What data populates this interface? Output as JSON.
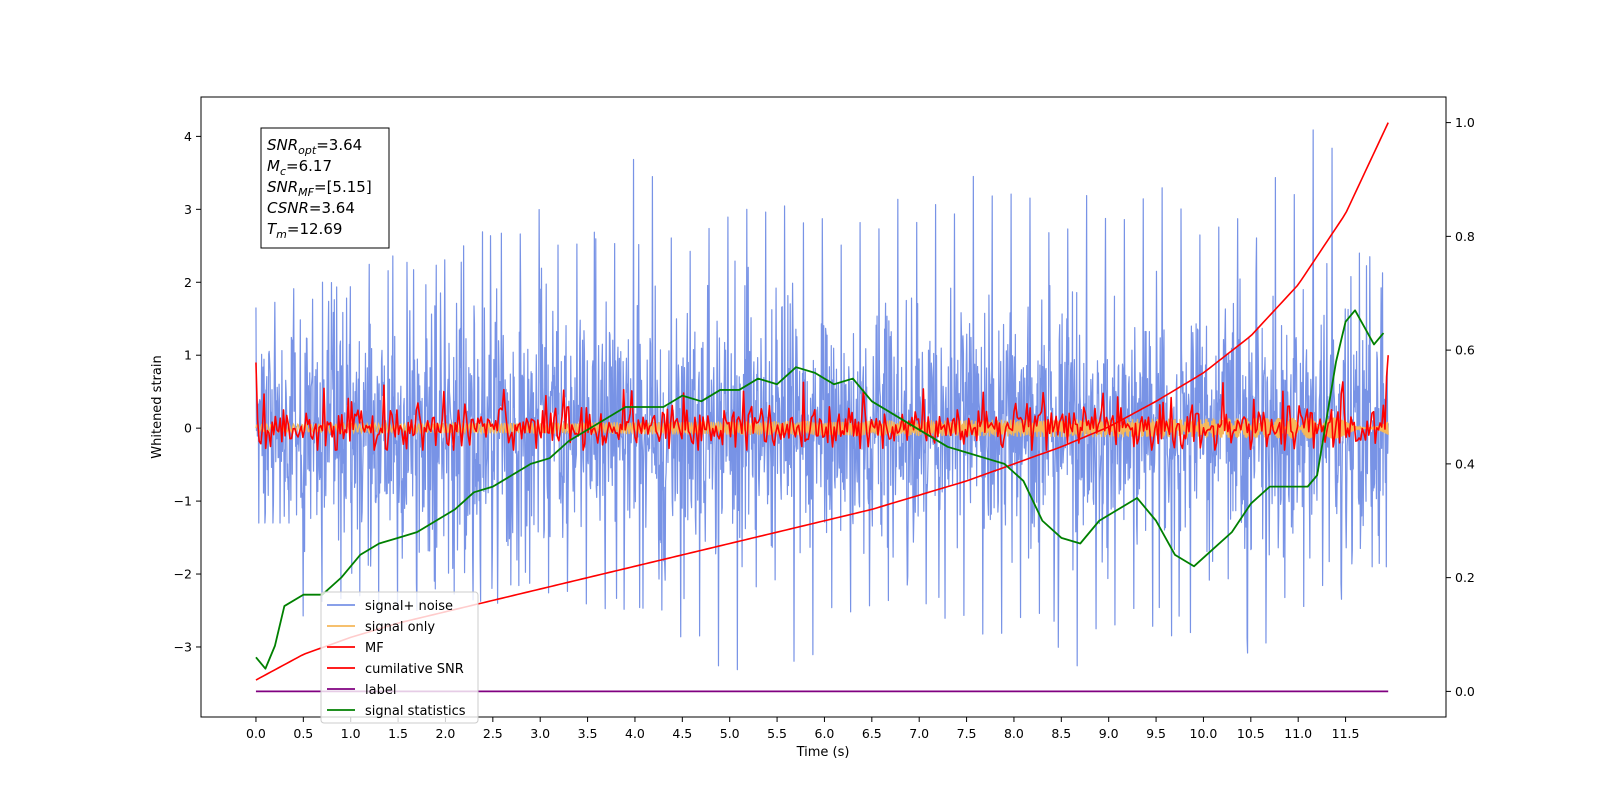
{
  "chart_data": {
    "type": "line",
    "xlabel": "Time (s)",
    "ylabel": "Whitened strain",
    "xlim": [
      -0.58,
      12.56
    ],
    "ylim": [
      -3.96,
      4.54
    ],
    "y2lim": [
      -0.045,
      1.045
    ],
    "xticks": [
      0.0,
      0.5,
      1.0,
      1.5,
      2.0,
      2.5,
      3.0,
      3.5,
      4.0,
      4.5,
      5.0,
      5.5,
      6.0,
      6.5,
      7.0,
      7.5,
      8.0,
      8.5,
      9.0,
      9.5,
      10.0,
      10.5,
      11.0,
      11.5
    ],
    "xtick_labels": [
      "0.0",
      "0.5",
      "1.0",
      "1.5",
      "2.0",
      "2.5",
      "3.0",
      "3.5",
      "4.0",
      "4.5",
      "5.0",
      "5.5",
      "6.0",
      "6.5",
      "7.0",
      "7.5",
      "8.0",
      "8.5",
      "9.0",
      "9.5",
      "10.0",
      "10.5",
      "11.0",
      "11.5"
    ],
    "yticks": [
      -3,
      -2,
      -1,
      0,
      1,
      2,
      3,
      4
    ],
    "ytick_labels": [
      "−3",
      "−2",
      "−1",
      "0",
      "1",
      "2",
      "3",
      "4"
    ],
    "y2ticks": [
      0.0,
      0.2,
      0.4,
      0.6,
      0.8,
      1.0
    ],
    "y2tick_labels": [
      "0.0",
      "0.2",
      "0.4",
      "0.6",
      "0.8",
      "1.0"
    ],
    "grid": false,
    "legend_position": "lower-left",
    "annotation": {
      "lines": [
        {
          "sym": "SNR",
          "sub": "opt",
          "val": "=3.64"
        },
        {
          "sym": "M",
          "sub": "c",
          "val": "=6.17"
        },
        {
          "sym": "SNR",
          "sub": "MF",
          "val": "=[5.15]"
        },
        {
          "sym": "CSNR",
          "sub": "",
          "val": "=3.64"
        },
        {
          "sym": "T",
          "sub": "m",
          "val": "=12.69"
        }
      ]
    },
    "series": [
      {
        "name": "signal+ noise",
        "color": "#7893e6",
        "axis": "left",
        "envelope_max": [
          1.75,
          2.0,
          2.1,
          2.4,
          2.3,
          2.6,
          2.9,
          3.1,
          2.8,
          2.7,
          3.76,
          2.8,
          3.0,
          3.4,
          3.2,
          2.9,
          3.2,
          3.3,
          3.4,
          3.5,
          3.65,
          3.0,
          3.2,
          3.2,
          3.3,
          3.1,
          3.0,
          3.5,
          4.17,
          2.4
        ],
        "envelope_min": [
          -1.3,
          -2.6,
          -2.7,
          -2.6,
          -2.5,
          -2.6,
          -2.4,
          -2.5,
          -2.6,
          -2.7,
          -2.6,
          -3.1,
          -3.5,
          -2.4,
          -3.2,
          -2.8,
          -2.7,
          -2.5,
          -2.9,
          -3.0,
          -2.9,
          -3.4,
          -2.9,
          -2.8,
          -3.0,
          -2.4,
          -3.2,
          -2.6,
          -2.5,
          -1.9
        ]
      },
      {
        "name": "signal only",
        "color": "#f5b75a",
        "axis": "left",
        "amplitude_start": 0.05,
        "amplitude_end": 0.15
      },
      {
        "name": "MF",
        "color": "#ff0000",
        "axis": "left",
        "start_value": 0.9,
        "end_value": 1.0,
        "noise_range": [
          -0.3,
          0.6
        ]
      },
      {
        "name": "cumilative SNR",
        "color": "#ff0000",
        "axis": "right",
        "x": [
          0.0,
          0.5,
          1.0,
          1.5,
          2.0,
          2.5,
          3.0,
          3.5,
          4.0,
          4.5,
          5.0,
          5.5,
          6.0,
          6.5,
          7.0,
          7.5,
          8.0,
          8.5,
          9.0,
          9.5,
          10.0,
          10.5,
          11.0,
          11.5,
          11.95
        ],
        "values": [
          0.02,
          0.065,
          0.095,
          0.12,
          0.14,
          0.16,
          0.18,
          0.2,
          0.22,
          0.24,
          0.26,
          0.28,
          0.3,
          0.32,
          0.345,
          0.37,
          0.4,
          0.43,
          0.465,
          0.51,
          0.56,
          0.625,
          0.715,
          0.84,
          1.0
        ]
      },
      {
        "name": "label",
        "color": "#800080",
        "axis": "right",
        "x": [
          0.0,
          11.95
        ],
        "values": [
          0.0,
          0.0
        ]
      },
      {
        "name": "signal statistics",
        "color": "#008000",
        "axis": "right",
        "x": [
          0.0,
          0.1,
          0.2,
          0.3,
          0.5,
          0.7,
          0.9,
          1.1,
          1.3,
          1.5,
          1.7,
          1.9,
          2.1,
          2.3,
          2.5,
          2.7,
          2.9,
          3.1,
          3.3,
          3.5,
          3.7,
          3.9,
          4.1,
          4.3,
          4.5,
          4.7,
          4.9,
          5.1,
          5.3,
          5.5,
          5.7,
          5.9,
          6.1,
          6.3,
          6.5,
          6.7,
          6.9,
          7.1,
          7.3,
          7.5,
          7.7,
          7.9,
          8.1,
          8.3,
          8.5,
          8.7,
          8.9,
          9.1,
          9.3,
          9.5,
          9.7,
          9.9,
          10.1,
          10.3,
          10.5,
          10.7,
          10.9,
          11.1,
          11.2,
          11.3,
          11.4,
          11.5,
          11.6,
          11.7,
          11.8,
          11.9
        ],
        "values": [
          0.06,
          0.04,
          0.08,
          0.15,
          0.17,
          0.17,
          0.2,
          0.24,
          0.26,
          0.27,
          0.28,
          0.3,
          0.32,
          0.35,
          0.36,
          0.38,
          0.4,
          0.41,
          0.44,
          0.46,
          0.48,
          0.5,
          0.5,
          0.5,
          0.52,
          0.51,
          0.53,
          0.53,
          0.55,
          0.54,
          0.57,
          0.56,
          0.54,
          0.55,
          0.51,
          0.49,
          0.47,
          0.45,
          0.43,
          0.42,
          0.41,
          0.4,
          0.37,
          0.3,
          0.27,
          0.26,
          0.3,
          0.32,
          0.34,
          0.3,
          0.24,
          0.22,
          0.25,
          0.28,
          0.33,
          0.36,
          0.36,
          0.36,
          0.38,
          0.48,
          0.58,
          0.65,
          0.67,
          0.64,
          0.61,
          0.63
        ]
      }
    ]
  }
}
